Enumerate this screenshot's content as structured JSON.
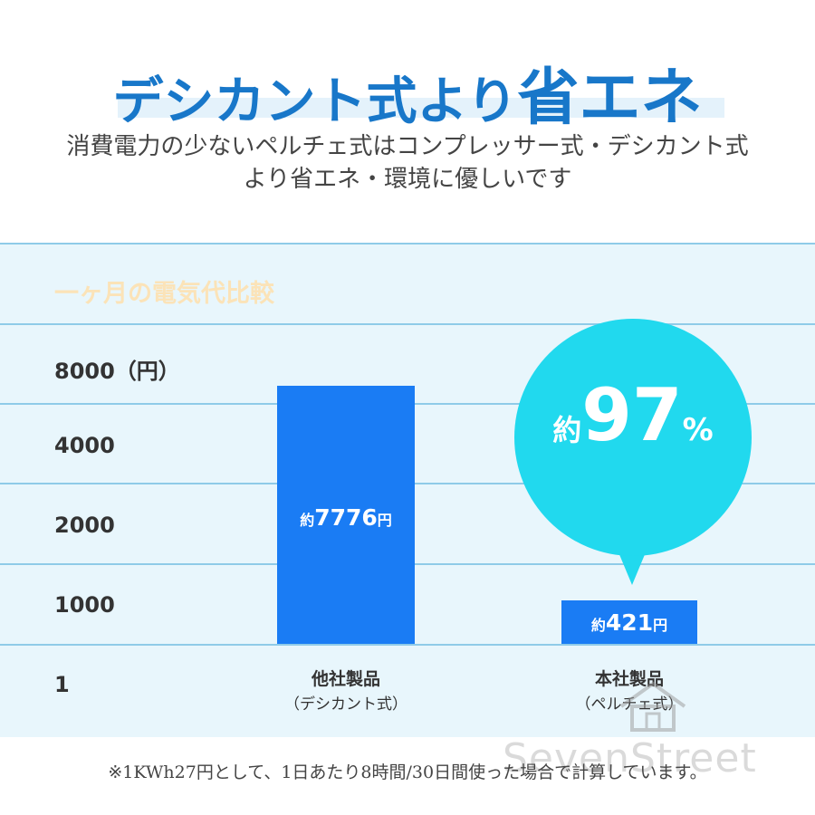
{
  "headline": {
    "part1": "デシカント式より",
    "part2": "省エネ"
  },
  "subtitle": [
    "消費電力の少ないペルチェ式はコンプレッサー式・デシカント式",
    "より省エネ・環境に優しいです"
  ],
  "chart_data": {
    "type": "bar",
    "title": "一ヶ月の電気代比較",
    "y_ticks": [
      "8000（円）",
      "4000",
      "2000",
      "1000",
      "1"
    ],
    "categories": [
      {
        "name": "他社製品",
        "sub": "（デシカント式）"
      },
      {
        "name": "本社製品",
        "sub": "（ペルチェ式）"
      }
    ],
    "values": [
      7776,
      421
    ],
    "value_labels": [
      {
        "prefix": "約",
        "number": "7776",
        "suffix": "円"
      },
      {
        "prefix": "約",
        "number": "421",
        "suffix": "円"
      }
    ],
    "callout": {
      "prefix": "約",
      "number": "97",
      "suffix": "%"
    },
    "bar_color": "#1a7cf4",
    "callout_color": "#21d9ee",
    "grid": true
  },
  "footnote": "※1KWh27円として、1日あたり8時間/30日間使った場合で計算しています。",
  "watermark": "SevenStreet"
}
